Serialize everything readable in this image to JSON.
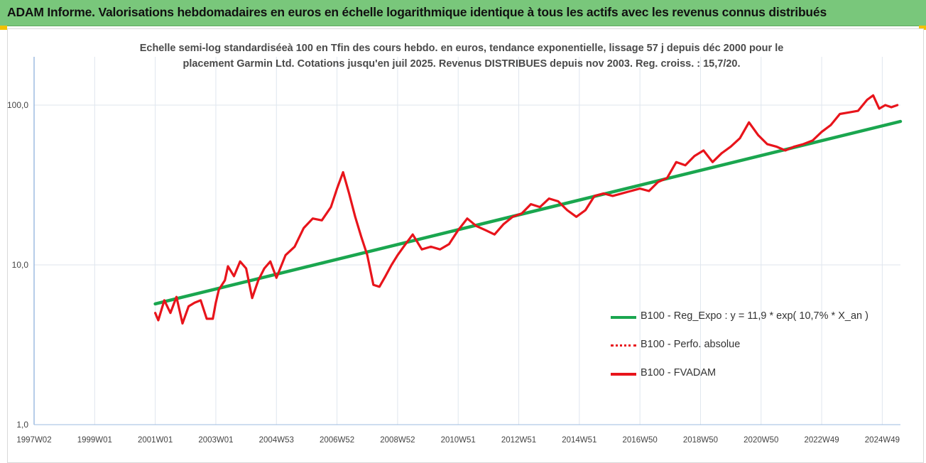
{
  "header": {
    "title": "ADAM Informe. Valorisations hebdomadaires en euros en échelle logarithmique identique à tous les actifs avec les revenus connus distribués"
  },
  "colors": {
    "header_bg": "#79c77b",
    "corner_accent": "#f2c100",
    "regression": "#1aa64f",
    "perf_absolue": "#e8141b",
    "fvadam": "#e8141b"
  },
  "chart_data": {
    "type": "line",
    "subtitle_line1": "Echelle semi-log standardiséeà 100 en Tfin des cours hebdo. en euros, tendance exponentielle, lissage 57 j depuis déc 2000 pour le",
    "subtitle_line2": "placement Garmin Ltd. Cotations jusqu'en juil 2025. Revenus DISTRIBUES depuis nov 2003. Reg. croiss. : 15,7/20.",
    "y_scale": "log",
    "ylim": [
      1,
      200
    ],
    "yticks": [
      {
        "value": 1,
        "label": "1,0"
      },
      {
        "value": 10,
        "label": "10,0"
      },
      {
        "value": 100,
        "label": "100,0"
      }
    ],
    "xlim": [
      1997.0,
      2025.6
    ],
    "xticks": [
      {
        "value": 1997.0,
        "label": "1997W02"
      },
      {
        "value": 1999.0,
        "label": "1999W01"
      },
      {
        "value": 2001.0,
        "label": "2001W01"
      },
      {
        "value": 2003.0,
        "label": "2003W01"
      },
      {
        "value": 2005.0,
        "label": "2004W53"
      },
      {
        "value": 2007.0,
        "label": "2006W52"
      },
      {
        "value": 2009.0,
        "label": "2008W52"
      },
      {
        "value": 2011.0,
        "label": "2010W51"
      },
      {
        "value": 2013.0,
        "label": "2012W51"
      },
      {
        "value": 2015.0,
        "label": "2014W51"
      },
      {
        "value": 2017.0,
        "label": "2016W50"
      },
      {
        "value": 2019.0,
        "label": "2018W50"
      },
      {
        "value": 2021.0,
        "label": "2020W50"
      },
      {
        "value": 2023.0,
        "label": "2022W49"
      },
      {
        "value": 2025.0,
        "label": "2024W49"
      }
    ],
    "vertical_grid": true,
    "horizontal_grid": true,
    "legend_position": "bottom-right",
    "series": [
      {
        "name": "B100 - Reg_Expo : y = 11,9 * exp( 10,7% *  X_an )",
        "style": "solid-thick",
        "x": [
          2001.0,
          2025.6
        ],
        "y": [
          5.7,
          79.0
        ]
      },
      {
        "name": "B100 - Perfo. absolue",
        "style": "dotted",
        "x": [],
        "y": []
      },
      {
        "name": "B100 - FVADAM",
        "style": "solid",
        "x": [
          2001.0,
          2001.1,
          2001.3,
          2001.5,
          2001.7,
          2001.9,
          2002.1,
          2002.3,
          2002.5,
          2002.7,
          2002.9,
          2003.0,
          2003.1,
          2003.3,
          2003.4,
          2003.6,
          2003.8,
          2004.0,
          2004.2,
          2004.4,
          2004.6,
          2004.8,
          2005.0,
          2005.3,
          2005.6,
          2005.9,
          2006.2,
          2006.5,
          2006.8,
          2007.0,
          2007.2,
          2007.4,
          2007.6,
          2007.8,
          2008.0,
          2008.2,
          2008.4,
          2008.6,
          2008.8,
          2009.0,
          2009.2,
          2009.5,
          2009.8,
          2010.1,
          2010.4,
          2010.7,
          2011.0,
          2011.3,
          2011.6,
          2011.9,
          2012.2,
          2012.5,
          2012.8,
          2013.1,
          2013.4,
          2013.7,
          2014.0,
          2014.3,
          2014.6,
          2014.9,
          2015.2,
          2015.5,
          2015.8,
          2016.1,
          2016.4,
          2016.7,
          2017.0,
          2017.3,
          2017.6,
          2017.9,
          2018.2,
          2018.5,
          2018.8,
          2019.1,
          2019.4,
          2019.7,
          2020.0,
          2020.3,
          2020.6,
          2020.9,
          2021.2,
          2021.5,
          2021.8,
          2022.1,
          2022.4,
          2022.7,
          2023.0,
          2023.3,
          2023.6,
          2023.9,
          2024.2,
          2024.5,
          2024.7,
          2024.9,
          2025.1,
          2025.3,
          2025.5
        ],
        "y": [
          5.0,
          4.5,
          6.0,
          5.0,
          6.3,
          4.3,
          5.5,
          5.8,
          6.0,
          4.6,
          4.6,
          5.8,
          7.0,
          8.0,
          9.8,
          8.5,
          10.5,
          9.5,
          6.2,
          8.0,
          9.5,
          10.5,
          8.3,
          11.5,
          13.0,
          17.0,
          19.5,
          19.0,
          23.0,
          30.0,
          38.0,
          28.0,
          20.0,
          15.0,
          11.5,
          7.5,
          7.3,
          8.5,
          10.0,
          11.5,
          13.0,
          15.5,
          12.5,
          13.0,
          12.5,
          13.5,
          16.5,
          19.5,
          17.5,
          16.5,
          15.5,
          18.0,
          20.0,
          21.0,
          24.0,
          23.0,
          26.0,
          25.0,
          22.0,
          20.0,
          22.0,
          27.0,
          28.0,
          27.0,
          28.0,
          29.0,
          30.0,
          29.0,
          33.0,
          35.0,
          44.0,
          42.0,
          48.0,
          52.0,
          44.0,
          50.0,
          55.0,
          62.0,
          78.0,
          65.0,
          57.0,
          55.0,
          52.0,
          55.0,
          57.0,
          60.0,
          68.0,
          75.0,
          88.0,
          90.0,
          92.0,
          108.0,
          115.0,
          95.0,
          100.0,
          97.0,
          100.0
        ]
      }
    ]
  }
}
